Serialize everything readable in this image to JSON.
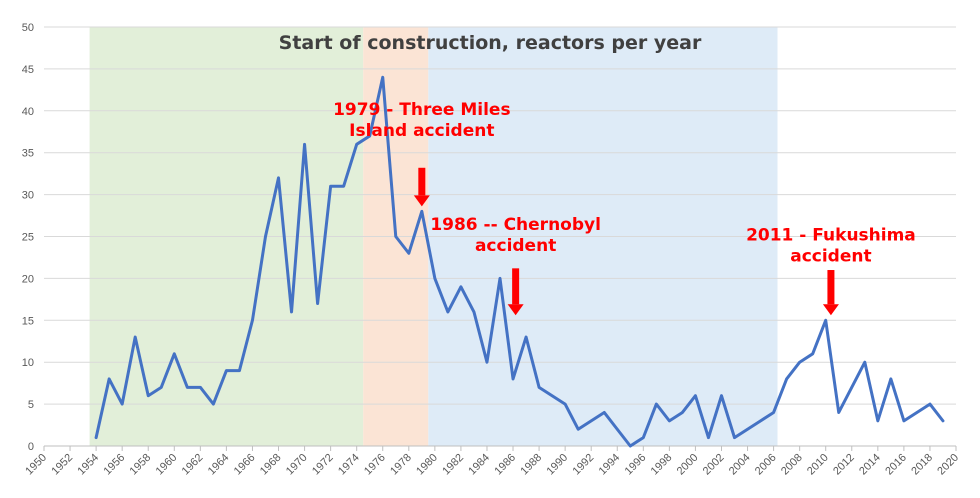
{
  "chart_data": {
    "type": "line",
    "title": "Start of construction, reactors per year",
    "xlabel": "",
    "ylabel": "",
    "xlim": [
      1950,
      2020
    ],
    "ylim": [
      0,
      50
    ],
    "grid": "horizontal",
    "y_ticks": [
      0,
      5,
      10,
      15,
      20,
      25,
      30,
      35,
      40,
      45,
      50
    ],
    "x_ticks": [
      "1950",
      "1952",
      "1954",
      "1956",
      "1958",
      "1960",
      "1962",
      "1964",
      "1966",
      "1968",
      "1970",
      "1972",
      "1974",
      "1976",
      "1978",
      "1980",
      "1982",
      "1984",
      "1986",
      "1988",
      "1990",
      "1992",
      "1994",
      "1996",
      "1998",
      "2000",
      "2002",
      "2004",
      "2006",
      "2008",
      "2010",
      "2012",
      "2014",
      "2016",
      "2018",
      "2020"
    ],
    "series": [
      {
        "color": "#4472c4",
        "points": [
          [
            1954,
            1
          ],
          [
            1955,
            8
          ],
          [
            1956,
            5
          ],
          [
            1957,
            13
          ],
          [
            1958,
            6
          ],
          [
            1959,
            7
          ],
          [
            1960,
            11
          ],
          [
            1961,
            7
          ],
          [
            1962,
            7
          ],
          [
            1963,
            5
          ],
          [
            1964,
            9
          ],
          [
            1965,
            9
          ],
          [
            1966,
            15
          ],
          [
            1967,
            25
          ],
          [
            1968,
            32
          ],
          [
            1969,
            16
          ],
          [
            1970,
            36
          ],
          [
            1971,
            17
          ],
          [
            1972,
            31
          ],
          [
            1973,
            31
          ],
          [
            1974,
            36
          ],
          [
            1975,
            37
          ],
          [
            1976,
            44
          ],
          [
            1977,
            25
          ],
          [
            1978,
            23
          ],
          [
            1979,
            28
          ],
          [
            1980,
            20
          ],
          [
            1981,
            16
          ],
          [
            1982,
            19
          ],
          [
            1983,
            16
          ],
          [
            1984,
            10
          ],
          [
            1985,
            20
          ],
          [
            1986,
            8
          ],
          [
            1987,
            13
          ],
          [
            1988,
            7
          ],
          [
            1989,
            6
          ],
          [
            1990,
            5
          ],
          [
            1991,
            2
          ],
          [
            1992,
            3
          ],
          [
            1993,
            4
          ],
          [
            1994,
            2
          ],
          [
            1995,
            0
          ],
          [
            1996,
            1
          ],
          [
            1997,
            5
          ],
          [
            1998,
            3
          ],
          [
            1999,
            4
          ],
          [
            2000,
            6
          ],
          [
            2001,
            1
          ],
          [
            2002,
            6
          ],
          [
            2003,
            1
          ],
          [
            2004,
            2
          ],
          [
            2005,
            3
          ],
          [
            2006,
            4
          ],
          [
            2007,
            8
          ],
          [
            2008,
            10
          ],
          [
            2009,
            11
          ],
          [
            2010,
            15
          ],
          [
            2011,
            4
          ],
          [
            2012,
            7
          ],
          [
            2013,
            10
          ],
          [
            2014,
            3
          ],
          [
            2015,
            8
          ],
          [
            2016,
            3
          ],
          [
            2017,
            4
          ],
          [
            2018,
            5
          ],
          [
            2019,
            3
          ]
        ]
      }
    ],
    "bands": [
      {
        "from": 1953.5,
        "to": 1974.5,
        "color": "#e2efd9"
      },
      {
        "from": 1974.5,
        "to": 1979.5,
        "color": "#fbe4d5"
      },
      {
        "from": 1979.5,
        "to": 2006.3,
        "color": "#deebf7"
      }
    ],
    "annotations": [
      {
        "lines": [
          "1979 - Three Miles",
          "Island accident"
        ],
        "text_x": 1979,
        "text_y": 39.5,
        "arrow_x": 1979,
        "arrow_top": 33.2,
        "arrow_bottom": 28.6
      },
      {
        "lines": [
          "1986 -- Chernobyl",
          "accident"
        ],
        "text_x": 1986.2,
        "text_y": 25.8,
        "arrow_x": 1986.2,
        "arrow_top": 21.2,
        "arrow_bottom": 15.6
      },
      {
        "lines": [
          "2011 - Fukushima",
          "accident"
        ],
        "text_x": 2010.4,
        "text_y": 24.5,
        "arrow_x": 2010.4,
        "arrow_top": 21.0,
        "arrow_bottom": 15.6
      }
    ]
  }
}
